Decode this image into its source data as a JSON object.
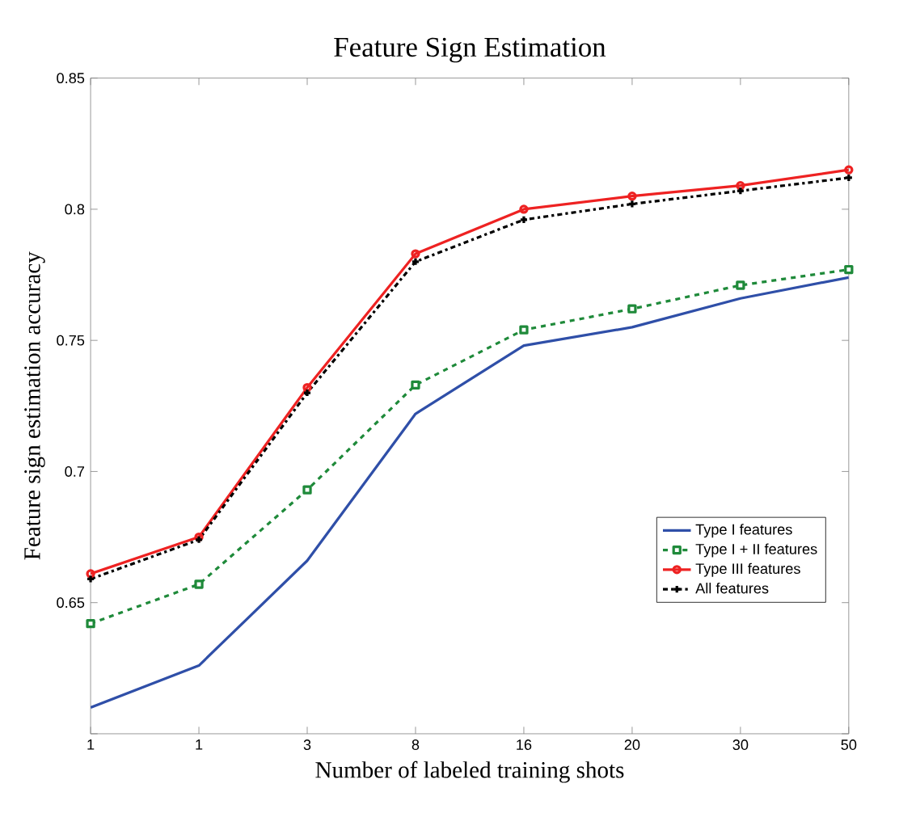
{
  "chart_data": {
    "type": "line",
    "title": "Feature Sign Estimation",
    "xlabel": "Number of labeled training shots",
    "ylabel": "Feature sign estimation accuracy",
    "categories": [
      "1",
      "1",
      "3",
      "8",
      "16",
      "20",
      "30",
      "50"
    ],
    "ylim": [
      0.6,
      0.85
    ],
    "yticks": [
      {
        "value": 0.6,
        "label": null
      },
      0.65,
      0.7,
      0.75,
      0.8,
      0.85
    ],
    "grid": false,
    "legend": "right",
    "series": [
      {
        "name": "Type I features",
        "color": "#2f4fa8",
        "marker": "none",
        "line_style": "solid",
        "values": [
          0.61,
          0.626,
          0.666,
          0.722,
          0.748,
          0.755,
          0.766,
          0.774
        ]
      },
      {
        "name": "Type I + II features",
        "color": "#1f8a3a",
        "marker": "square",
        "line_style": "dashed",
        "values": [
          0.642,
          0.657,
          0.693,
          0.733,
          0.754,
          0.762,
          0.771,
          0.777
        ]
      },
      {
        "name": "Type III features",
        "color": "#ee2222",
        "marker": "circle",
        "line_style": "solid",
        "values": [
          0.661,
          0.675,
          0.732,
          0.783,
          0.8,
          0.805,
          0.809,
          0.815
        ]
      },
      {
        "name": "All features",
        "color": "#000000",
        "marker": "cross",
        "line_style": "dashdot",
        "values": [
          0.659,
          0.674,
          0.73,
          0.78,
          0.796,
          0.802,
          0.807,
          0.812
        ]
      }
    ]
  }
}
